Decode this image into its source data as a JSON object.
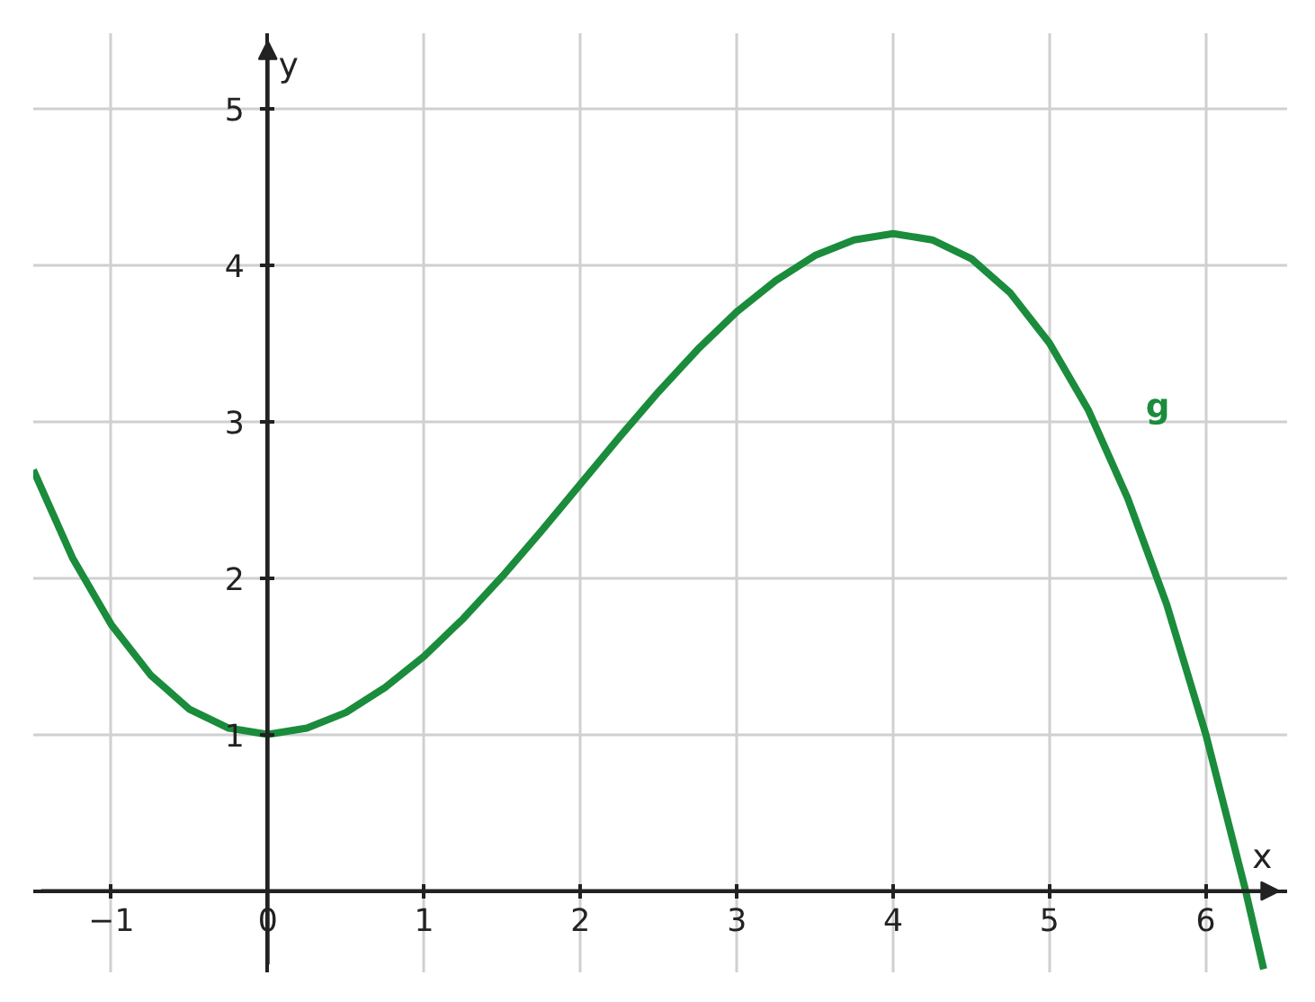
{
  "chart_data": {
    "type": "line",
    "xlabel": "x",
    "ylabel": "y",
    "xlim": [
      -1.5,
      6.52
    ],
    "ylim": [
      -0.52,
      5.48
    ],
    "xticks": [
      -1,
      {
        "value": 0,
        "label": "0"
      },
      1,
      2,
      3,
      4,
      5,
      6
    ],
    "yticks": [
      1,
      2,
      3,
      4,
      5
    ],
    "grid": true,
    "marker": "none",
    "line_style": "solid",
    "series": [
      {
        "name": "g",
        "color": "#1a8c3c",
        "x": [
          -1.5,
          -1.25,
          -1,
          -0.75,
          -0.5,
          -0.25,
          0,
          0.25,
          0.5,
          0.75,
          1,
          1.25,
          1.5,
          1.75,
          2,
          2.25,
          2.5,
          2.75,
          3,
          3.25,
          3.5,
          3.75,
          4,
          4.25,
          4.5,
          4.75,
          5,
          5.25,
          5.5,
          5.75,
          6,
          6.25,
          6.37
        ],
        "values": [
          2.69,
          2.13,
          1.7,
          1.38,
          1.16,
          1.04,
          1,
          1.04,
          1.14,
          1.3,
          1.5,
          1.74,
          2.01,
          2.3,
          2.6,
          2.9,
          3.19,
          3.46,
          3.7,
          3.9,
          4.06,
          4.16,
          4.2,
          4.16,
          4.04,
          3.82,
          3.5,
          3.07,
          2.51,
          1.83,
          1,
          0.02,
          -0.5
        ]
      }
    ]
  }
}
